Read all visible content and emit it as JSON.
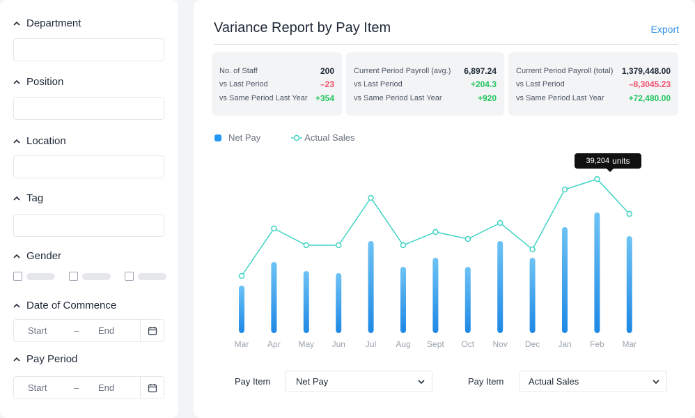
{
  "filters": {
    "department": {
      "label": "Department"
    },
    "position": {
      "label": "Position"
    },
    "location": {
      "label": "Location"
    },
    "tag": {
      "label": "Tag"
    },
    "gender": {
      "label": "Gender"
    },
    "date_of_commence": {
      "label": "Date of Commence",
      "start_placeholder": "Start",
      "separator": "–",
      "end_placeholder": "End"
    },
    "pay_period": {
      "label": "Pay Period",
      "start_placeholder": "Start",
      "separator": "–",
      "end_placeholder": "End"
    }
  },
  "report": {
    "title": "Variance Report by Pay Item",
    "export_label": "Export"
  },
  "stats": [
    {
      "rows": [
        {
          "label": "No. of Staff",
          "value": "200"
        },
        {
          "label": "vs Last Period",
          "value": "–23"
        },
        {
          "label": "vs Same Period Last Year",
          "value": "+354"
        }
      ]
    },
    {
      "rows": [
        {
          "label": "Current Period Payroll (avg.)",
          "value": "6,897.24"
        },
        {
          "label": "vs Last Period",
          "value": "+204.3"
        },
        {
          "label": "vs Same Period Last Year",
          "value": "+920"
        }
      ]
    },
    {
      "rows": [
        {
          "label": "Current Period Payroll (total)",
          "value": "1,379,448.00"
        },
        {
          "label": "vs Last Period",
          "value": "–8,3045.23"
        },
        {
          "label": "vs Same Period Last Year",
          "value": "+72,480.00"
        }
      ]
    }
  ],
  "colors": {
    "positive": "#22c55e",
    "negative": "#f0506e",
    "accent": "#2f8fea",
    "bar": "#2196f3",
    "line": "#3fd3c4"
  },
  "tooltip": {
    "value": "39,204",
    "unit": "units"
  },
  "chart_data": {
    "type": "bar",
    "categories": [
      "Mar",
      "Apr",
      "May",
      "Jun",
      "Jul",
      "Aug",
      "Sept",
      "Oct",
      "Nov",
      "Dec",
      "Jan",
      "Feb",
      "Mar"
    ],
    "series": [
      {
        "name": "Net Pay",
        "type": "bar",
        "values": [
          68,
          102,
          89,
          86,
          132,
          95,
          108,
          95,
          132,
          108,
          152,
          173,
          139
        ]
      },
      {
        "name": "Actual Sales",
        "type": "line",
        "values": [
          82,
          150,
          126,
          126,
          194,
          126,
          145,
          135,
          158,
          120,
          206,
          221,
          171
        ]
      }
    ],
    "legend": "top-left",
    "grid": false
  },
  "pay_item_selectors": [
    {
      "label": "Pay Item",
      "value": "Net Pay"
    },
    {
      "label": "Pay Item",
      "value": "Actual Sales"
    }
  ]
}
